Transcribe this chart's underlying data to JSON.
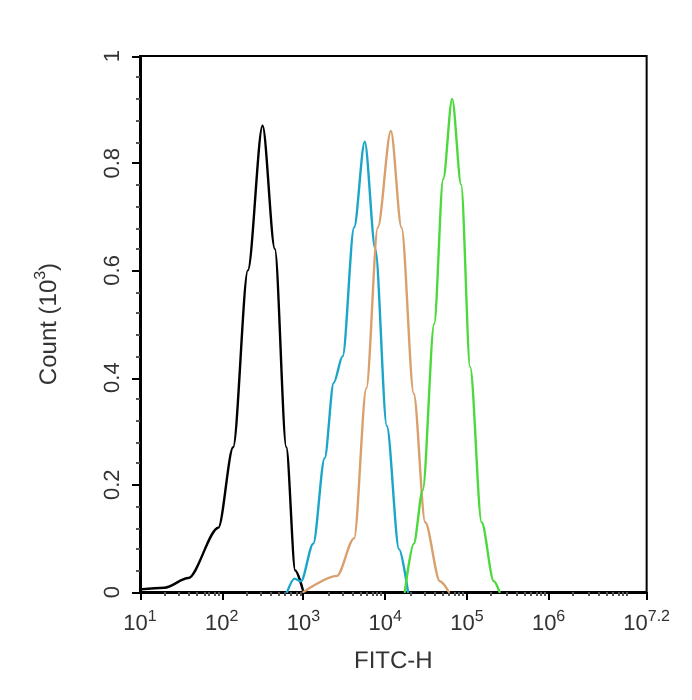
{
  "chart_data": {
    "type": "line",
    "xlabel": "FITC-H",
    "ylabel": "Count (10$^{3}$)",
    "log": "x",
    "marker": "none",
    "line_style": "solid",
    "xlim": [
      10,
      15848932
    ],
    "xticks": [
      {
        "value": 10,
        "label": "10$^{1}$"
      },
      {
        "value": 100,
        "label": "10$^{2}$"
      },
      {
        "value": 1000,
        "label": "10$^{3}$"
      },
      {
        "value": 10000,
        "label": "10$^{4}$"
      },
      {
        "value": 100000,
        "label": "10$^{5}$"
      },
      {
        "value": 1000000,
        "label": "10$^{6}$"
      },
      {
        "value": 15848932,
        "label": "10$^{7.2}$"
      }
    ],
    "ylim": [
      0,
      1
    ],
    "yticks": [
      0,
      0.2,
      0.4,
      0.6,
      0.8,
      1
    ],
    "series": [
      {
        "color": "#000000",
        "x": [
          10,
          20,
          39,
          91,
          138,
          209,
          316,
          447,
          617,
          794,
          1000
        ],
        "values": [
          0.005,
          0.008,
          0.026,
          0.12,
          0.27,
          0.6,
          0.87,
          0.64,
          0.27,
          0.04,
          0
        ]
      },
      {
        "color": "#1ba6c9",
        "x": [
          631,
          776,
          933,
          1318,
          1820,
          2344,
          3020,
          4169,
          5623,
          7586,
          10470,
          14790,
          19050
        ],
        "values": [
          0,
          0.025,
          0.02,
          0.09,
          0.25,
          0.39,
          0.44,
          0.68,
          0.84,
          0.64,
          0.31,
          0.08,
          0
        ]
      },
      {
        "color": "#d9a06e",
        "x": [
          1000,
          2570,
          4169,
          5888,
          8128,
          11750,
          15850,
          22390,
          30900,
          46770,
          60260
        ],
        "values": [
          0,
          0.03,
          0.1,
          0.38,
          0.68,
          0.86,
          0.68,
          0.37,
          0.13,
          0.02,
          0
        ]
      },
      {
        "color": "#4cd93c",
        "x": [
          17380,
          22390,
          28840,
          39810,
          51290,
          66070,
          85110,
          109600,
          151400,
          213800,
          251200
        ],
        "values": [
          0,
          0.09,
          0.19,
          0.5,
          0.77,
          0.92,
          0.76,
          0.42,
          0.13,
          0.02,
          0
        ]
      }
    ]
  }
}
